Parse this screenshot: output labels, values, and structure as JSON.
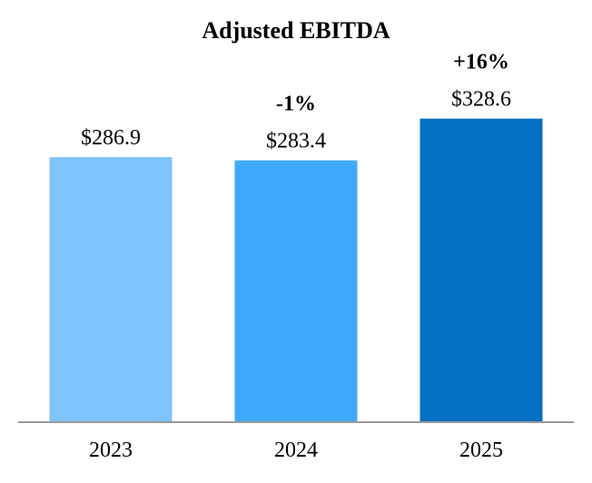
{
  "chart_data": {
    "type": "bar",
    "title": "Adjusted EBITDA",
    "categories": [
      "2023",
      "2024",
      "2025"
    ],
    "values": [
      286.9,
      283.4,
      328.6
    ],
    "value_labels": [
      "$286.9",
      "$283.4",
      "$328.6"
    ],
    "changes": [
      "",
      "-1%",
      "+16%"
    ],
    "colors": [
      "#80c4fc",
      "#3fa9fb",
      "#0270c4"
    ],
    "axis_color": "#999999",
    "xlabel": "",
    "ylabel": "",
    "ylim": [
      0,
      400
    ],
    "grid": false,
    "legend": "none"
  }
}
